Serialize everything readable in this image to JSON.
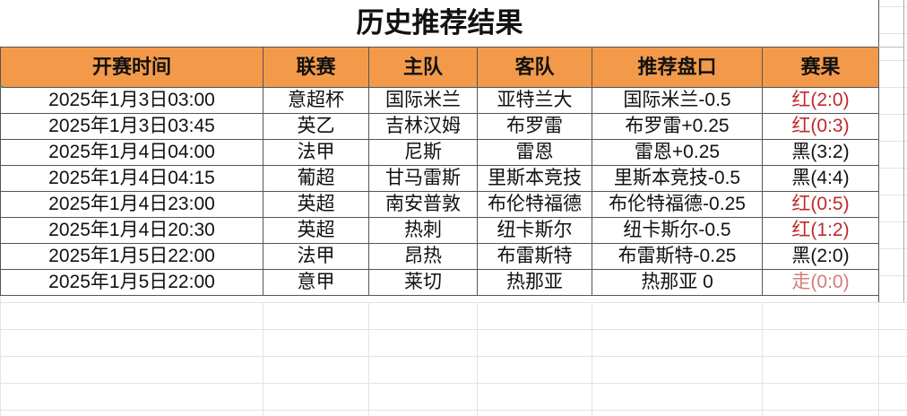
{
  "sheet": {
    "title": "历史推荐结果",
    "headers": [
      "开赛时间",
      "联赛",
      "主队",
      "客队",
      "推荐盘口",
      "赛果"
    ],
    "rows": [
      {
        "time": "2025年1月3日03:00",
        "league": "意超杯",
        "home": "国际米兰",
        "away": "亚特兰大",
        "pick": "国际米兰-0.5",
        "result": "红(2:0)",
        "status": "red"
      },
      {
        "time": "2025年1月3日03:45",
        "league": "英乙",
        "home": "吉林汉姆",
        "away": "布罗雷",
        "pick": "布罗雷+0.25",
        "result": "红(0:3)",
        "status": "red"
      },
      {
        "time": "2025年1月4日04:00",
        "league": "法甲",
        "home": "尼斯",
        "away": "雷恩",
        "pick": "雷恩+0.25",
        "result": "黑(3:2)",
        "status": "black"
      },
      {
        "time": "2025年1月4日04:15",
        "league": "葡超",
        "home": "甘马雷斯",
        "away": "里斯本竞技",
        "pick": "里斯本竞技-0.5",
        "result": "黑(4:4)",
        "status": "black"
      },
      {
        "time": "2025年1月4日23:00",
        "league": "英超",
        "home": "南安普敦",
        "away": "布伦特福德",
        "pick": "布伦特福德-0.25",
        "result": "红(0:5)",
        "status": "red"
      },
      {
        "time": "2025年1月4日20:30",
        "league": "英超",
        "home": "热刺",
        "away": "纽卡斯尔",
        "pick": "纽卡斯尔-0.5",
        "result": "红(1:2)",
        "status": "red"
      },
      {
        "time": "2025年1月5日22:00",
        "league": "法甲",
        "home": "昂热",
        "away": "布雷斯特",
        "pick": "布雷斯特-0.25",
        "result": "黑(2:0)",
        "status": "black"
      },
      {
        "time": "2025年1月5日22:00",
        "league": "意甲",
        "home": "莱切",
        "away": "热那亚",
        "pick": "热那亚 0",
        "result": "走(0:0)",
        "status": "push"
      }
    ],
    "colors": {
      "header_bg": "#f39a4a",
      "red": "#c0282d",
      "black": "#111111",
      "push": "#d57b7b"
    }
  }
}
